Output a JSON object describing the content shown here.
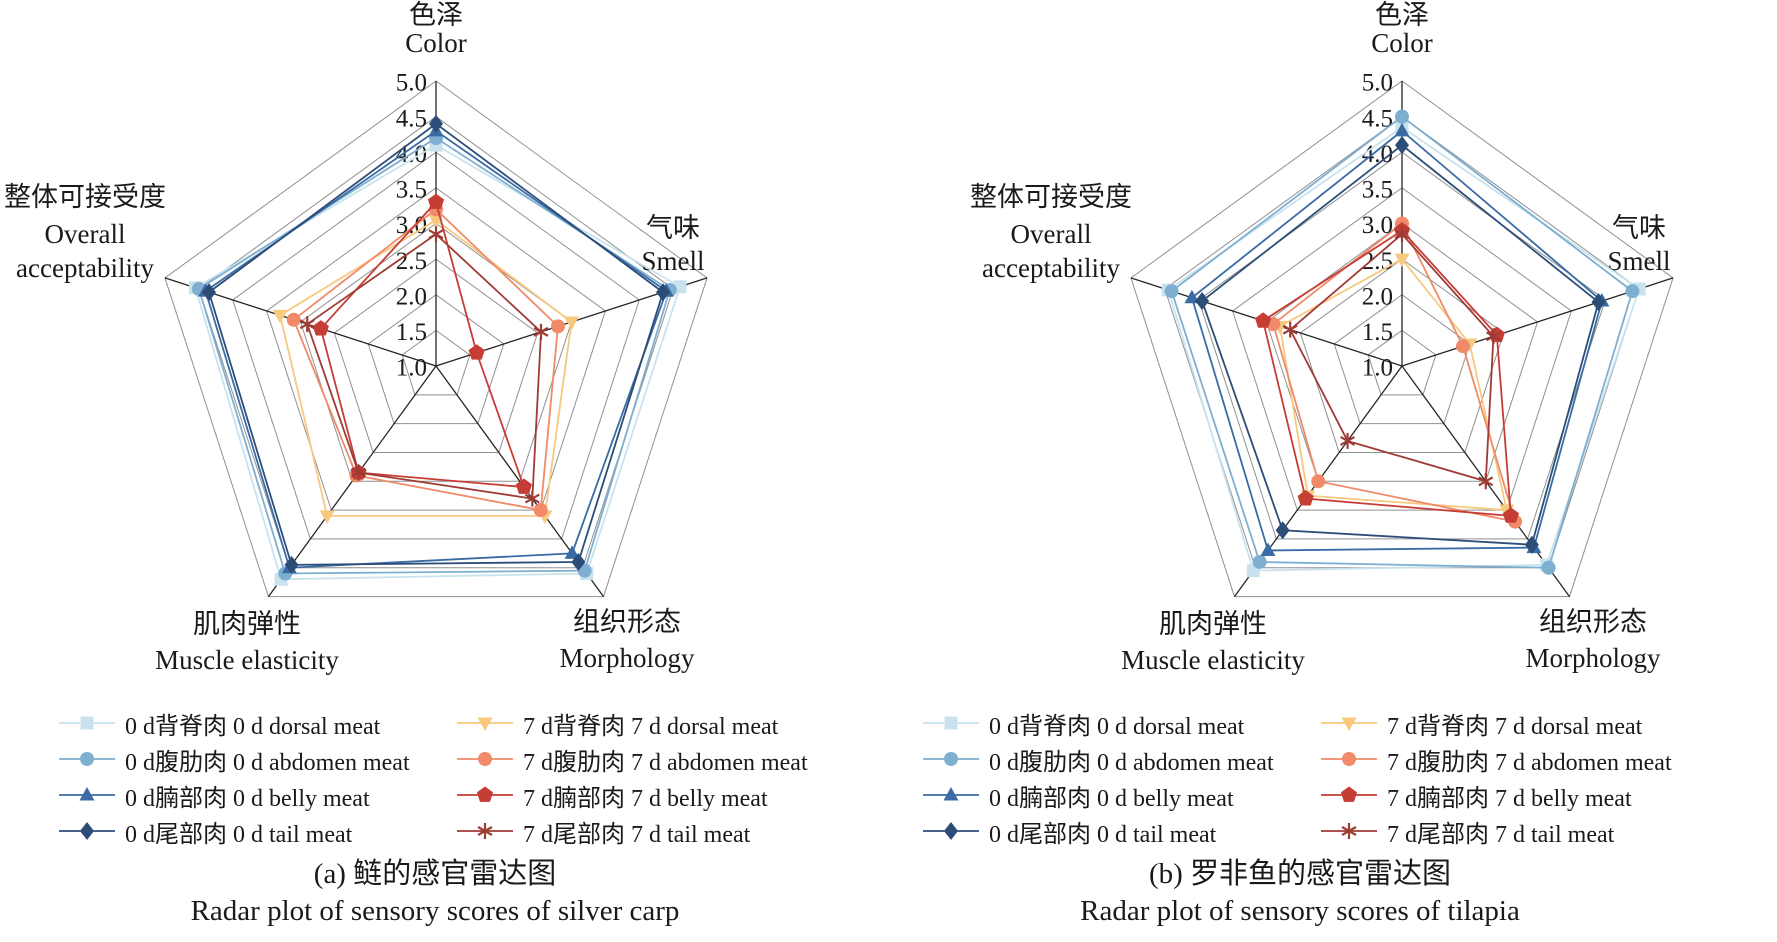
{
  "figure": {
    "tick_labels": [
      "5.0",
      "4.5",
      "4.0",
      "3.5",
      "3.0",
      "2.5",
      "2.0",
      "1.5",
      "1.0"
    ],
    "axes": [
      {
        "zh": "色泽",
        "en": "Color"
      },
      {
        "zh": "气味",
        "en": "Smell"
      },
      {
        "zh": "组织形态",
        "en": "Morphology"
      },
      {
        "zh": "肌肉弹性",
        "en": "Muscle elasticity"
      },
      {
        "zh": "整体可接受度",
        "en": "Overall acceptability"
      }
    ],
    "series_defs": [
      {
        "label": "0 d背脊肉 0 d dorsal meat",
        "marker": "square",
        "color": "#C8E3EE"
      },
      {
        "label": "0 d腹肋肉 0 d abdomen meat",
        "marker": "circle",
        "color": "#7FAFD0"
      },
      {
        "label": "0 d腩部肉 0 d belly meat",
        "marker": "triangle-up",
        "color": "#3A6BA5"
      },
      {
        "label": "0 d尾部肉 0 d tail meat",
        "marker": "diamond",
        "color": "#2D4D79"
      },
      {
        "label": "7 d背脊肉 7 d dorsal meat",
        "marker": "triangle-down",
        "color": "#F7C87E"
      },
      {
        "label": "7 d腹肋肉 7 d abdomen meat",
        "marker": "circle",
        "color": "#F08A68"
      },
      {
        "label": "7 d腩部肉 7 d belly meat",
        "marker": "pentagon",
        "color": "#C63D36"
      },
      {
        "label": "7 d尾部肉 7 d tail meat",
        "marker": "asterisk",
        "color": "#9F3B35"
      }
    ],
    "legend_columns": [
      [
        0,
        1,
        2,
        3
      ],
      [
        4,
        5,
        6,
        7
      ]
    ]
  },
  "chart_data": [
    {
      "type": "radar",
      "title": "(a) 鲢的感官雷达图",
      "subtitle": "Radar plot of sensory scores of silver carp",
      "axes": [
        "色泽 Color",
        "气味 Smell",
        "组织形态 Morphology",
        "肌肉弹性 Muscle elasticity",
        "整体可接受度 Overall acceptability"
      ],
      "r_min": 1.0,
      "r_max": 5.0,
      "r_step": 0.5,
      "grid": true,
      "series": [
        {
          "name": "0 d背脊肉 0 d dorsal meat",
          "values": [
            4.1,
            4.6,
            4.6,
            4.7,
            4.55
          ]
        },
        {
          "name": "0 d腹肋肉 0 d abdomen meat",
          "values": [
            4.2,
            4.45,
            4.55,
            4.6,
            4.5
          ]
        },
        {
          "name": "0 d腩部肉 0 d belly meat",
          "values": [
            4.3,
            4.4,
            4.25,
            4.5,
            4.4
          ]
        },
        {
          "name": "0 d尾部肉 0 d tail meat",
          "values": [
            4.4,
            4.35,
            4.4,
            4.45,
            4.35
          ]
        },
        {
          "name": "7 d背脊肉 7 d dorsal meat",
          "values": [
            3.05,
            3.0,
            3.6,
            3.6,
            3.3
          ]
        },
        {
          "name": "7 d腹肋肉 7 d abdomen meat",
          "values": [
            3.2,
            2.8,
            3.5,
            2.9,
            3.1
          ]
        },
        {
          "name": "7 d腩部肉 7 d belly meat",
          "values": [
            3.3,
            1.6,
            3.1,
            2.85,
            2.7
          ]
        },
        {
          "name": "7 d尾部肉 7 d tail meat",
          "values": [
            2.85,
            2.55,
            3.3,
            2.85,
            2.9
          ]
        }
      ]
    },
    {
      "type": "radar",
      "title": "(b) 罗非鱼的感官雷达图",
      "subtitle": "Radar plot of sensory scores of tilapia",
      "axes": [
        "色泽 Color",
        "气味 Smell",
        "组织形态 Morphology",
        "肌肉弹性 Muscle elasticity",
        "整体可接受度 Overall acceptability"
      ],
      "r_min": 1.0,
      "r_max": 5.0,
      "r_step": 0.5,
      "grid": true,
      "series": [
        {
          "name": "0 d背脊肉 0 d dorsal meat",
          "values": [
            4.35,
            4.5,
            4.45,
            4.55,
            4.45
          ]
        },
        {
          "name": "0 d腹肋肉 0 d abdomen meat",
          "values": [
            4.5,
            4.4,
            4.5,
            4.4,
            4.4
          ]
        },
        {
          "name": "0 d腩部肉 0 d belly meat",
          "values": [
            4.3,
            3.95,
            4.15,
            4.2,
            4.1
          ]
        },
        {
          "name": "0 d尾部肉 0 d tail meat",
          "values": [
            4.1,
            3.9,
            4.1,
            3.85,
            3.95
          ]
        },
        {
          "name": "7 d背脊肉 7 d dorsal meat",
          "values": [
            2.5,
            2.0,
            3.5,
            3.25,
            2.8
          ]
        },
        {
          "name": "7 d腹肋肉 7 d abdomen meat",
          "values": [
            3.0,
            1.9,
            3.7,
            3.0,
            2.9
          ]
        },
        {
          "name": "7 d腩部肉 7 d belly meat",
          "values": [
            2.9,
            2.4,
            3.6,
            3.3,
            3.05
          ]
        },
        {
          "name": "7 d尾部肉 7 d tail meat",
          "values": [
            2.85,
            2.35,
            3.0,
            2.3,
            2.65
          ]
        }
      ]
    }
  ]
}
